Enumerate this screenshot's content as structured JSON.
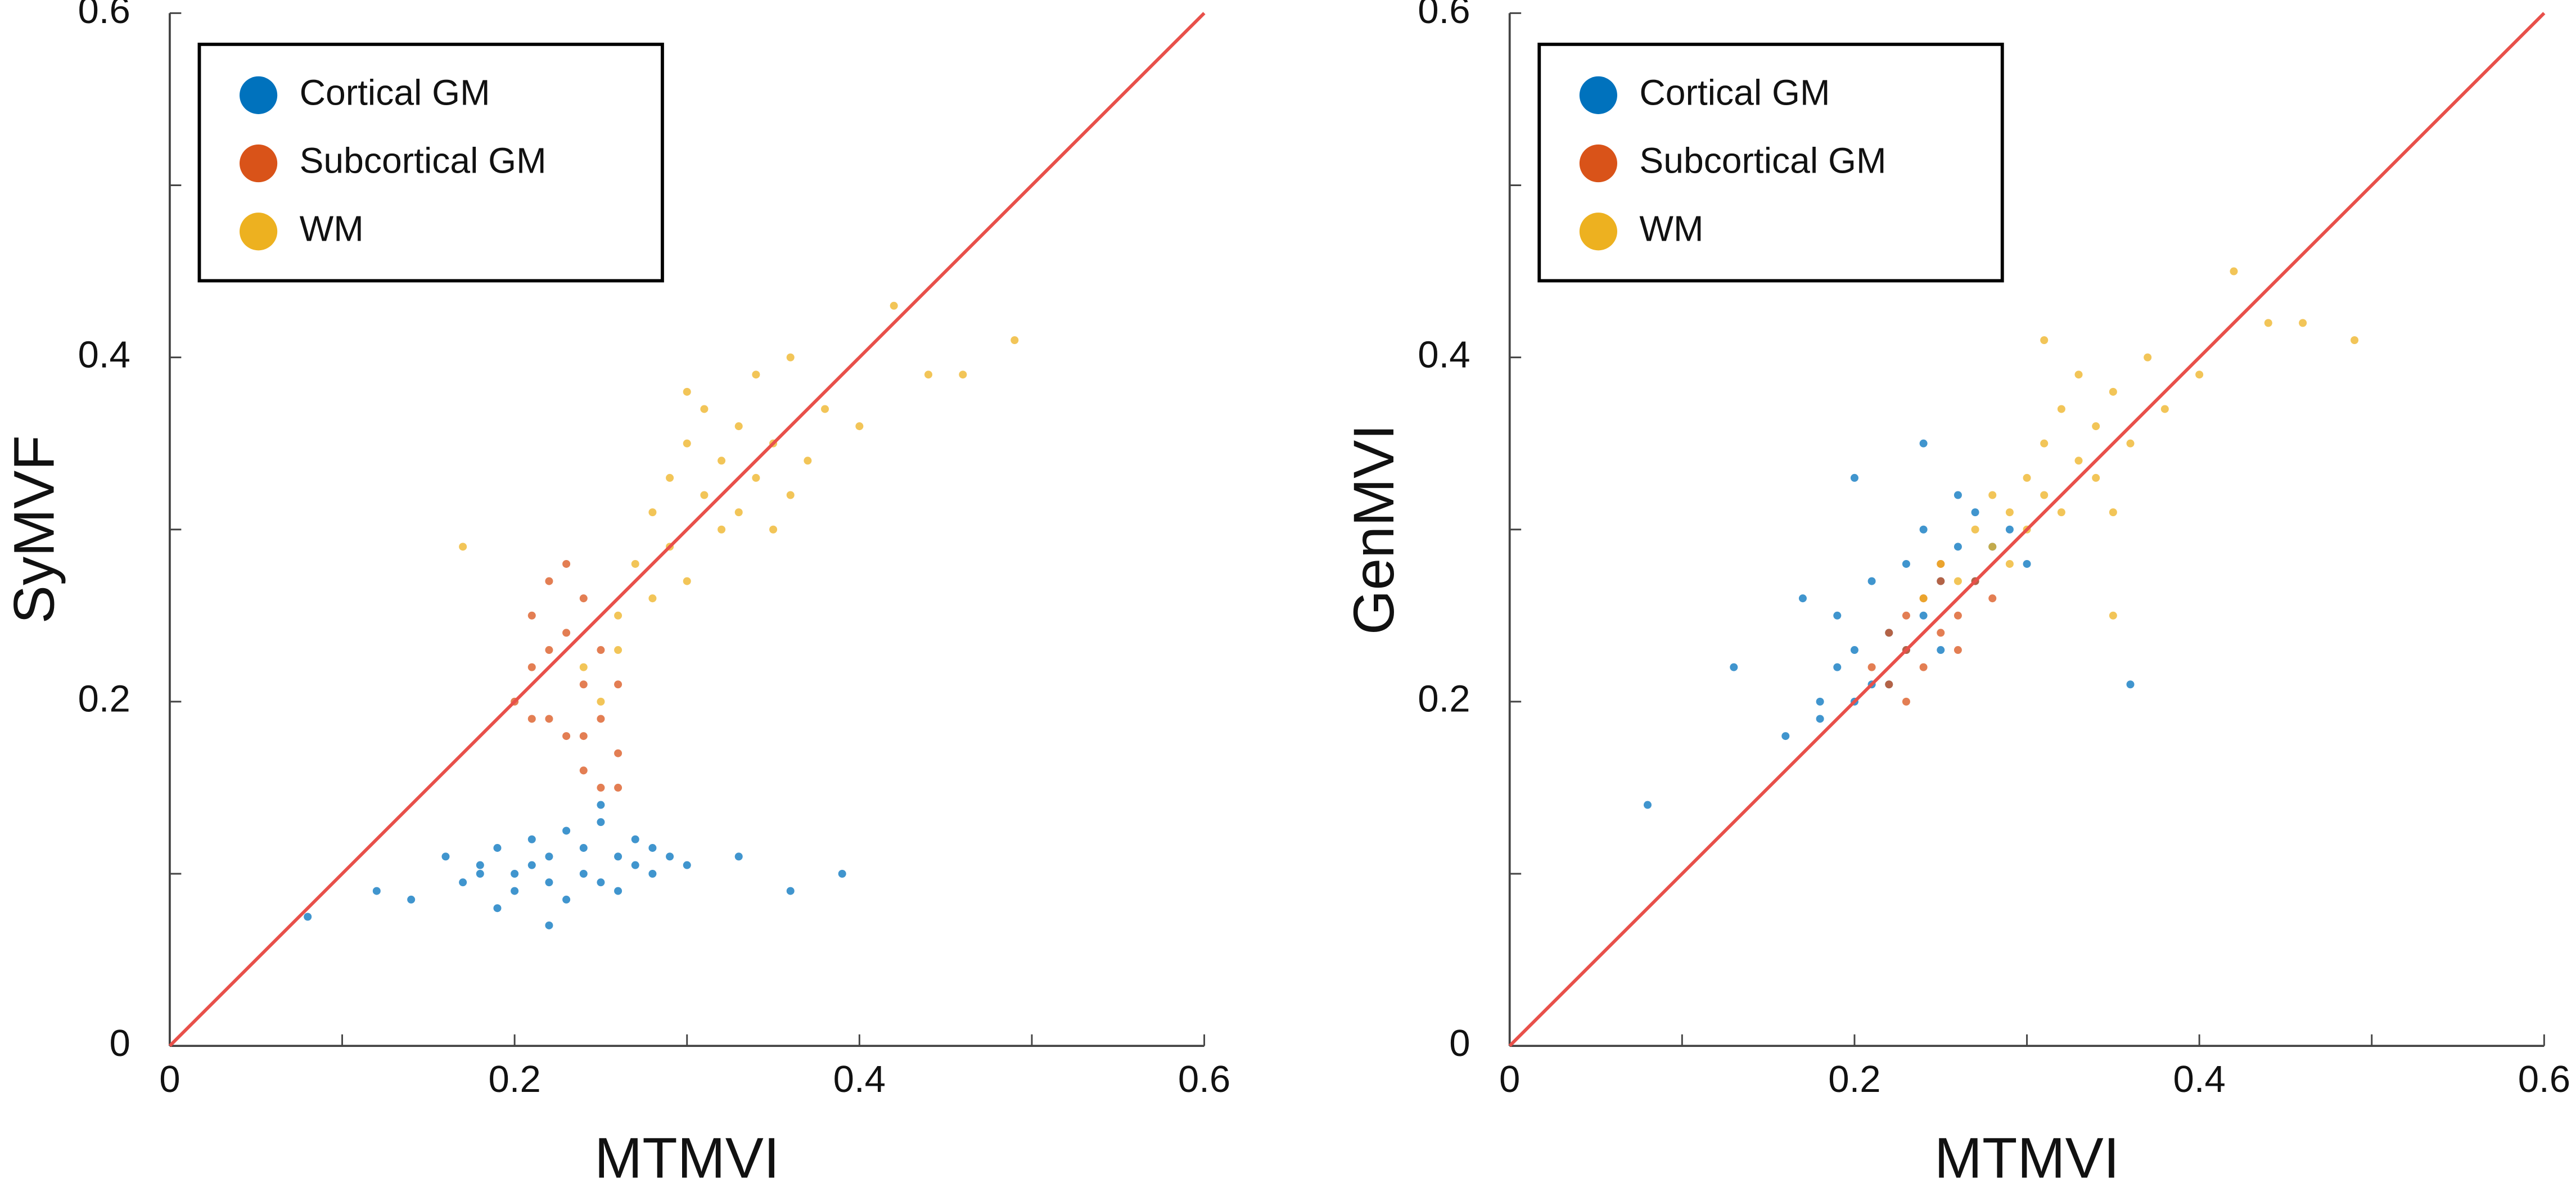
{
  "chart_data": [
    {
      "type": "scatter",
      "xlabel": "MTMVI",
      "ylabel": "SyMVF",
      "xlim": [
        0,
        0.6
      ],
      "ylim": [
        0,
        0.6
      ],
      "xticks": [
        0,
        0.2,
        0.4,
        0.6
      ],
      "yticks": [
        0,
        0.2,
        0.4,
        0.6
      ],
      "xminorticks": [
        0.1,
        0.3,
        0.5
      ],
      "yminorticks": [
        0.1,
        0.3,
        0.5
      ],
      "legend": "upper left",
      "reference_line": {
        "color": "#e8504a",
        "x": [
          0,
          0.6
        ],
        "values": [
          0,
          0.6
        ]
      },
      "series": [
        {
          "name": "Cortical GM",
          "color": "#0072bd",
          "x": [
            0.08,
            0.12,
            0.14,
            0.16,
            0.17,
            0.18,
            0.19,
            0.19,
            0.2,
            0.2,
            0.21,
            0.21,
            0.22,
            0.22,
            0.23,
            0.23,
            0.24,
            0.24,
            0.25,
            0.25,
            0.26,
            0.26,
            0.27,
            0.27,
            0.28,
            0.28,
            0.29,
            0.3,
            0.33,
            0.36,
            0.39,
            0.22,
            0.25,
            0.18
          ],
          "values": [
            0.075,
            0.09,
            0.085,
            0.11,
            0.095,
            0.1,
            0.08,
            0.115,
            0.1,
            0.09,
            0.12,
            0.105,
            0.095,
            0.11,
            0.085,
            0.125,
            0.1,
            0.115,
            0.095,
            0.13,
            0.11,
            0.09,
            0.12,
            0.105,
            0.1,
            0.115,
            0.11,
            0.105,
            0.11,
            0.09,
            0.1,
            0.07,
            0.14,
            0.105
          ]
        },
        {
          "name": "Subcortical GM",
          "color": "#d95319",
          "x": [
            0.2,
            0.21,
            0.21,
            0.22,
            0.22,
            0.23,
            0.23,
            0.24,
            0.24,
            0.25,
            0.25,
            0.26,
            0.26,
            0.23,
            0.22,
            0.24,
            0.25,
            0.21,
            0.24,
            0.26
          ],
          "values": [
            0.2,
            0.25,
            0.22,
            0.27,
            0.19,
            0.18,
            0.24,
            0.16,
            0.21,
            0.15,
            0.19,
            0.17,
            0.21,
            0.28,
            0.23,
            0.26,
            0.23,
            0.19,
            0.18,
            0.15
          ]
        },
        {
          "name": "WM",
          "color": "#edb120",
          "x": [
            0.17,
            0.24,
            0.25,
            0.26,
            0.27,
            0.28,
            0.28,
            0.29,
            0.29,
            0.3,
            0.3,
            0.31,
            0.31,
            0.32,
            0.32,
            0.33,
            0.33,
            0.34,
            0.34,
            0.35,
            0.35,
            0.36,
            0.37,
            0.38,
            0.4,
            0.42,
            0.44,
            0.46,
            0.49,
            0.26,
            0.3,
            0.36
          ],
          "values": [
            0.29,
            0.22,
            0.2,
            0.25,
            0.28,
            0.26,
            0.31,
            0.29,
            0.33,
            0.27,
            0.35,
            0.32,
            0.37,
            0.3,
            0.34,
            0.36,
            0.31,
            0.39,
            0.33,
            0.35,
            0.3,
            0.4,
            0.34,
            0.37,
            0.36,
            0.43,
            0.39,
            0.39,
            0.41,
            0.23,
            0.38,
            0.32
          ]
        }
      ]
    },
    {
      "type": "scatter",
      "xlabel": "MTMVI",
      "ylabel": "GenMVI",
      "xlim": [
        0,
        0.6
      ],
      "ylim": [
        0,
        0.6
      ],
      "xticks": [
        0,
        0.2,
        0.4,
        0.6
      ],
      "yticks": [
        0,
        0.2,
        0.4,
        0.6
      ],
      "xminorticks": [
        0.1,
        0.3,
        0.5
      ],
      "yminorticks": [
        0.1,
        0.3,
        0.5
      ],
      "legend": "upper left",
      "reference_line": {
        "color": "#e8504a",
        "x": [
          0,
          0.6
        ],
        "values": [
          0,
          0.6
        ]
      },
      "series": [
        {
          "name": "Cortical GM",
          "color": "#0072bd",
          "x": [
            0.08,
            0.13,
            0.16,
            0.17,
            0.18,
            0.18,
            0.19,
            0.19,
            0.2,
            0.2,
            0.21,
            0.21,
            0.22,
            0.22,
            0.23,
            0.23,
            0.24,
            0.24,
            0.25,
            0.25,
            0.26,
            0.26,
            0.27,
            0.27,
            0.28,
            0.29,
            0.3,
            0.36,
            0.2,
            0.24
          ],
          "values": [
            0.14,
            0.22,
            0.18,
            0.26,
            0.2,
            0.19,
            0.22,
            0.25,
            0.2,
            0.23,
            0.21,
            0.27,
            0.24,
            0.21,
            0.23,
            0.28,
            0.25,
            0.3,
            0.27,
            0.23,
            0.29,
            0.32,
            0.27,
            0.31,
            0.29,
            0.3,
            0.28,
            0.21,
            0.33,
            0.35
          ]
        },
        {
          "name": "Subcortical GM",
          "color": "#d95319",
          "x": [
            0.21,
            0.22,
            0.22,
            0.23,
            0.23,
            0.24,
            0.24,
            0.25,
            0.25,
            0.26,
            0.26,
            0.27,
            0.28,
            0.23,
            0.25
          ],
          "values": [
            0.22,
            0.21,
            0.24,
            0.23,
            0.25,
            0.22,
            0.26,
            0.24,
            0.27,
            0.25,
            0.23,
            0.27,
            0.26,
            0.2,
            0.28
          ]
        },
        {
          "name": "WM",
          "color": "#edb120",
          "x": [
            0.24,
            0.25,
            0.26,
            0.27,
            0.28,
            0.28,
            0.29,
            0.29,
            0.3,
            0.3,
            0.31,
            0.31,
            0.32,
            0.32,
            0.33,
            0.33,
            0.34,
            0.34,
            0.35,
            0.35,
            0.36,
            0.37,
            0.38,
            0.4,
            0.42,
            0.44,
            0.46,
            0.49,
            0.35,
            0.31
          ],
          "values": [
            0.26,
            0.28,
            0.27,
            0.3,
            0.29,
            0.32,
            0.31,
            0.28,
            0.33,
            0.3,
            0.35,
            0.32,
            0.31,
            0.37,
            0.34,
            0.39,
            0.33,
            0.36,
            0.38,
            0.31,
            0.35,
            0.4,
            0.37,
            0.39,
            0.45,
            0.42,
            0.42,
            0.41,
            0.25,
            0.41
          ]
        }
      ]
    }
  ]
}
